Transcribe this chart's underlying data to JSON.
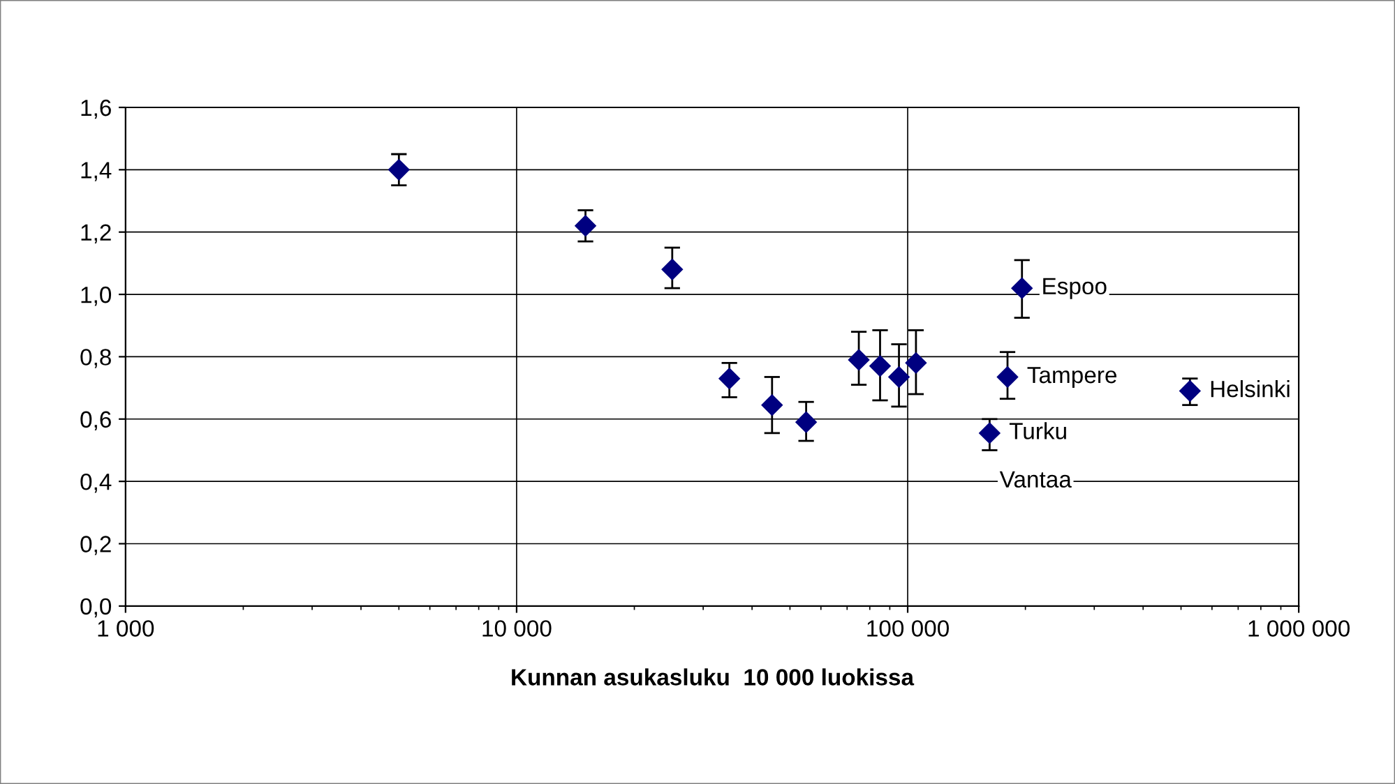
{
  "chart_data": {
    "type": "scatter",
    "xlabel": "Kunnan asukasluku  10 000 luokissa",
    "x": [
      5000,
      15000,
      25000,
      35000,
      45000,
      55000,
      75000,
      85000,
      95000,
      105000,
      196000,
      180000,
      162000,
      527000
    ],
    "values": [
      1.4,
      1.22,
      1.08,
      0.73,
      0.645,
      0.59,
      0.79,
      0.77,
      0.735,
      0.78,
      1.02,
      0.735,
      0.555,
      0.69
    ],
    "errors": [
      [
        1.35,
        1.45
      ],
      [
        1.17,
        1.27
      ],
      [
        1.02,
        1.15
      ],
      [
        0.67,
        0.78
      ],
      [
        0.555,
        0.735
      ],
      [
        0.53,
        0.655
      ],
      [
        0.71,
        0.88
      ],
      [
        0.66,
        0.885
      ],
      [
        0.64,
        0.84
      ],
      [
        0.68,
        0.885
      ],
      [
        0.925,
        1.11
      ],
      [
        0.665,
        0.815
      ],
      [
        0.5,
        0.6
      ],
      [
        0.645,
        0.73
      ]
    ],
    "color": "#000080",
    "marker": "diamond",
    "log": "x",
    "grid": true,
    "xlim": [
      1000,
      1000000
    ],
    "xticks": [
      {
        "value": 1000,
        "label": "1 000"
      },
      {
        "value": 10000,
        "label": "10 000"
      },
      {
        "value": 100000,
        "label": "100 000"
      },
      {
        "value": 1000000,
        "label": "1 000 000"
      }
    ],
    "ylim": [
      0,
      1.6
    ],
    "yticks": [
      {
        "value": 0,
        "label": "0,0"
      },
      {
        "value": 0.2,
        "label": "0,2"
      },
      {
        "value": 0.4,
        "label": "0,4"
      },
      {
        "value": 0.6,
        "label": "0,6"
      },
      {
        "value": 0.8,
        "label": "0,8"
      },
      {
        "value": 1.0,
        "label": "1,0"
      },
      {
        "value": 1.2,
        "label": "1,2"
      },
      {
        "value": 1.4,
        "label": "1,4"
      },
      {
        "value": 1.6,
        "label": "1,6"
      }
    ],
    "annotations": [
      {
        "text": "Espoo",
        "x": 196000,
        "y": 1.02
      },
      {
        "text": "Tampere",
        "x": 180000,
        "y": 0.735
      },
      {
        "text": "Turku",
        "x": 162000,
        "y": 0.555
      },
      "Vantaa",
      {
        "text": "Helsinki",
        "x": 527000,
        "y": 0.69
      }
    ]
  }
}
